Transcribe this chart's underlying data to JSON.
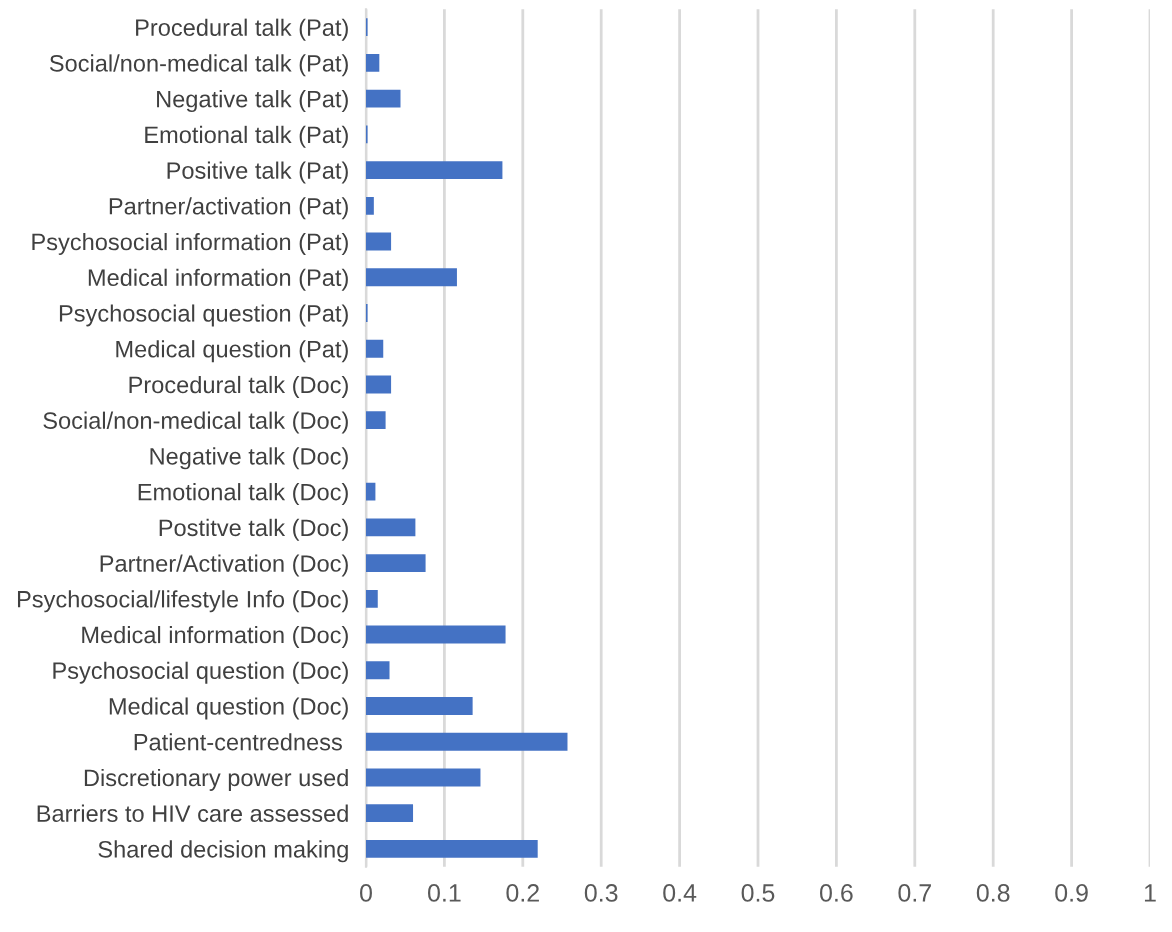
{
  "chart_data": {
    "type": "bar",
    "orientation": "horizontal",
    "color": "#4472c4",
    "categories": [
      "Procedural talk (Pat)",
      "Social/non-medical talk (Pat)",
      "Negative talk (Pat)",
      "Emotional talk (Pat)",
      "Positive talk (Pat)",
      "Partner/activation (Pat)",
      "Psychosocial information (Pat)",
      "Medical information (Pat)",
      "Psychosocial question (Pat)",
      "Medical question (Pat)",
      "Procedural talk (Doc)",
      "Social/non-medical talk (Doc)",
      "Negative talk (Doc)",
      "Emotional talk (Doc)",
      "Postitve talk (Doc)",
      "Partner/Activation (Doc)",
      "Psychosocial/lifestyle Info (Doc)",
      "Medical information (Doc)",
      "Psychosocial question (Doc)",
      "Medical question (Doc)",
      "Patient-centredness ",
      "Discretionary power used",
      "Barriers to HIV care assessed",
      "Shared decision making"
    ],
    "values": [
      0.002,
      0.017,
      0.044,
      0.002,
      0.174,
      0.01,
      0.032,
      0.116,
      0.002,
      0.022,
      0.032,
      0.025,
      0,
      0.012,
      0.063,
      0.076,
      0.015,
      0.178,
      0.03,
      0.136,
      0.257,
      0.146,
      0.06,
      0.219
    ],
    "xlim": [
      0,
      1
    ],
    "xticks": [
      0,
      0.1,
      0.2,
      0.3,
      0.4,
      0.5,
      0.6,
      0.7,
      0.8,
      0.9,
      1
    ],
    "grid": "x",
    "legend": false
  }
}
